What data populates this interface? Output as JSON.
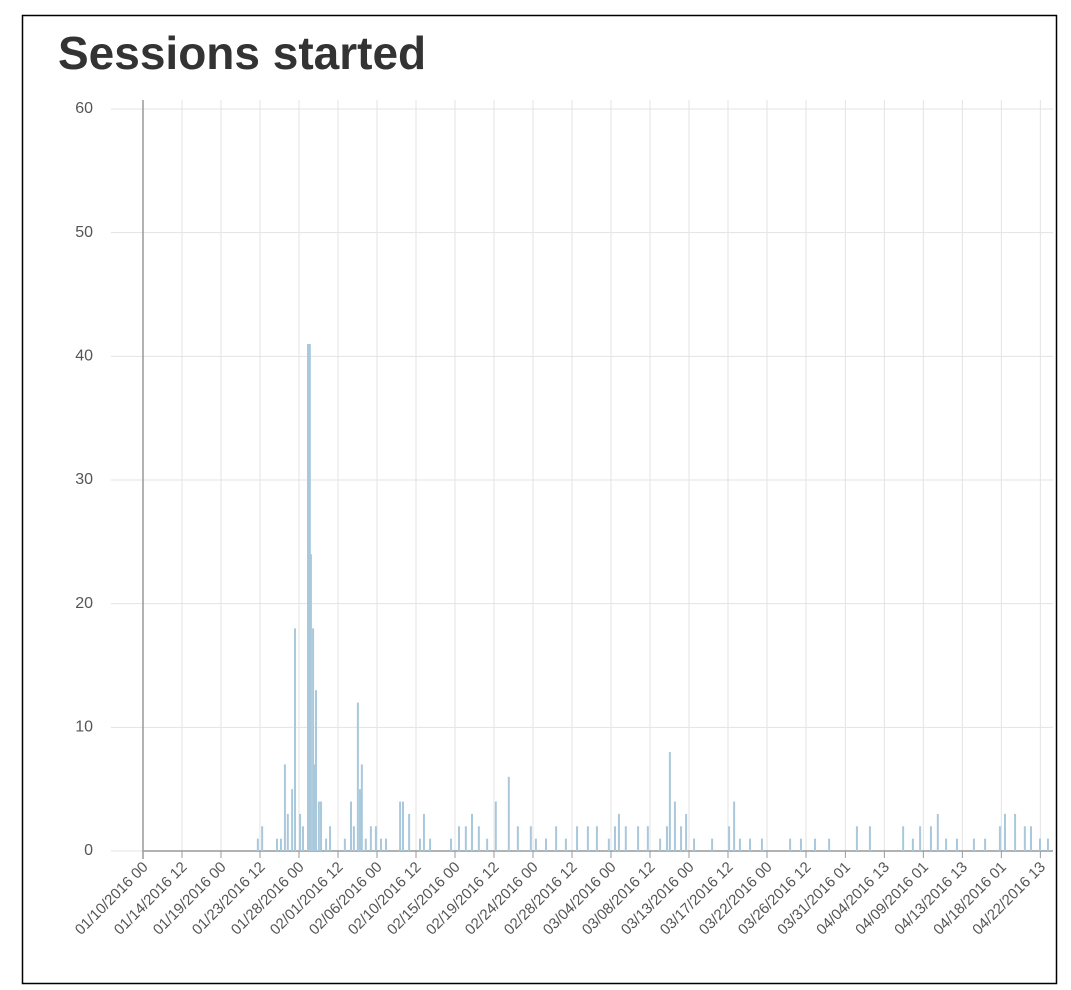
{
  "chart_data": {
    "type": "bar",
    "title": "Sessions started",
    "color": "#a9c8dc",
    "grid": true,
    "x": [
      "01/23/2016 06",
      "01/23/2016 18",
      "01/25/2016 11",
      "01/25/2016 22",
      "01/26/2016 09",
      "01/26/2016 17",
      "01/27/2016 05",
      "01/27/2016 13",
      "01/28/2016 03",
      "01/28/2016 11",
      "01/29/2016 01",
      "01/29/2016 06",
      "01/29/2016 09",
      "01/29/2016 15",
      "01/29/2016 20",
      "01/29/2016 23",
      "01/30/2016 07",
      "01/30/2016 13",
      "01/31/2016 03",
      "01/31/2016 14",
      "02/02/2016 07",
      "02/03/2016 00",
      "02/03/2016 08",
      "02/03/2016 19",
      "02/04/2016 01",
      "02/04/2016 06",
      "02/04/2016 17",
      "02/05/2016 07",
      "02/05/2016 21",
      "02/06/2016 11",
      "02/07/2016 01",
      "02/08/2016 16",
      "02/09/2016 00",
      "02/09/2016 17",
      "02/10/2016 23",
      "02/11/2016 10",
      "02/12/2016 03",
      "02/14/2016 13",
      "02/15/2016 11",
      "02/16/2016 06",
      "02/16/2016 23",
      "02/17/2016 18",
      "02/18/2016 17",
      "02/19/2016 17",
      "02/21/2016 05",
      "02/22/2016 06",
      "02/23/2016 18",
      "02/24/2016 08",
      "02/25/2016 12",
      "02/26/2016 16",
      "02/27/2016 19",
      "02/29/2016 02",
      "03/01/2016 08",
      "03/02/2016 09",
      "03/03/2016 18",
      "03/04/2016 11",
      "03/04/2016 22",
      "03/05/2016 17",
      "03/07/2016 03",
      "03/08/2016 06",
      "03/09/2016 16",
      "03/10/2016 11",
      "03/10/2016 19",
      "03/11/2016 09",
      "03/12/2016 02",
      "03/12/2016 16",
      "03/13/2016 14",
      "03/15/2016 16",
      "03/17/2016 15",
      "03/18/2016 05",
      "03/18/2016 21",
      "03/20/2016 01",
      "03/21/2016 10",
      "03/24/2016 16",
      "03/25/2016 22",
      "03/27/2016 13",
      "03/29/2016 04",
      "04/01/2016 09",
      "04/02/2016 21",
      "04/06/2016 17",
      "04/07/2016 20",
      "04/08/2016 16",
      "04/09/2016 22",
      "04/10/2016 17",
      "04/11/2016 16",
      "04/12/2016 22",
      "04/14/2016 21",
      "04/16/2016 04",
      "04/17/2016 21",
      "04/18/2016 11",
      "04/19/2016 15",
      "04/20/2016 18",
      "04/21/2016 11",
      "04/22/2016 12",
      "04/23/2016 10"
    ],
    "values": [
      1,
      2,
      1,
      1,
      7,
      3,
      5,
      18,
      3,
      2,
      41,
      41,
      24,
      18,
      7,
      13,
      4,
      4,
      1,
      2,
      1,
      4,
      2,
      12,
      5,
      7,
      1,
      2,
      2,
      1,
      1,
      4,
      4,
      3,
      1,
      3,
      1,
      1,
      2,
      2,
      3,
      2,
      1,
      4,
      6,
      2,
      2,
      1,
      1,
      2,
      1,
      2,
      2,
      2,
      1,
      2,
      3,
      2,
      2,
      2,
      1,
      2,
      8,
      4,
      2,
      3,
      1,
      1,
      2,
      4,
      1,
      1,
      1,
      1,
      1,
      1,
      1,
      2,
      2,
      2,
      1,
      2,
      2,
      3,
      1,
      1,
      1,
      1,
      2,
      3,
      3,
      2,
      2,
      1,
      1
    ],
    "xlim": [
      "01/10/2016 00",
      "04/24/2016 00"
    ],
    "xticks": [
      "01/10/2016 00",
      "01/14/2016 12",
      "01/19/2016 00",
      "01/23/2016 12",
      "01/28/2016 00",
      "02/01/2016 12",
      "02/06/2016 00",
      "02/10/2016 12",
      "02/15/2016 00",
      "02/19/2016 12",
      "02/24/2016 00",
      "02/28/2016 12",
      "03/04/2016 00",
      "03/08/2016 12",
      "03/13/2016 00",
      "03/17/2016 12",
      "03/22/2016 00",
      "03/26/2016 12",
      "03/31/2016 01",
      "04/04/2016 13",
      "04/09/2016 01",
      "04/13/2016 13",
      "04/18/2016 01",
      "04/22/2016 13"
    ],
    "ylim": [
      0,
      60
    ],
    "yticks": [
      0,
      10,
      20,
      30,
      40,
      50,
      60
    ]
  }
}
